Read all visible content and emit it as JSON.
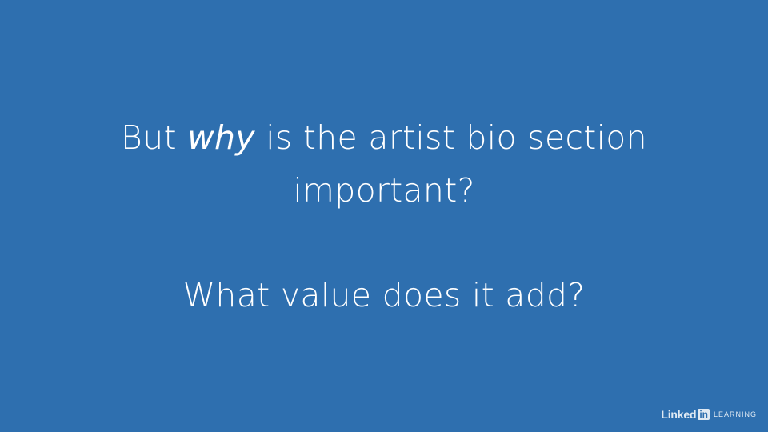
{
  "slide": {
    "line1_before": "But ",
    "line1_italic": "why",
    "line1_after": " is the artist bio section",
    "line2": "important?",
    "question2": "What value does it add?"
  },
  "watermark": {
    "brand_linked": "Linked",
    "brand_in": "in",
    "brand_learning": "LEARNING"
  },
  "colors": {
    "background": "#2e6faf",
    "text": "#ffffff"
  }
}
